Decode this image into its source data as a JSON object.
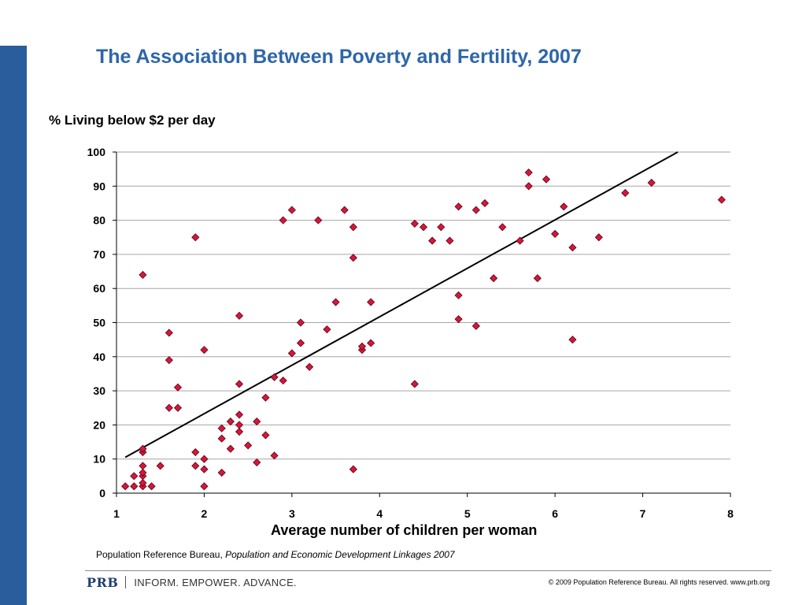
{
  "slide": {
    "title": "The Association Between Poverty and Fertility, 2007",
    "source_prefix": "Population Reference Bureau, ",
    "source_italic": "Population and Economic Development Linkages 2007",
    "brand_logo": "PRB",
    "brand_tagline": "INFORM. EMPOWER. ADVANCE.",
    "copyright": "© 2009 Population Reference Bureau. All rights reserved. www.prb.org",
    "accent_color": "#2a5d9c",
    "title_color": "#2e66a8"
  },
  "chart_data": {
    "type": "scatter",
    "title": "The Association Between Poverty and Fertility, 2007",
    "xlabel": "Average number of children per woman",
    "ylabel": "% Living below $2 per day",
    "xlim": [
      1,
      8
    ],
    "ylim": [
      0,
      100
    ],
    "x_ticks": [
      "1",
      "2",
      "3",
      "4",
      "5",
      "6",
      "7",
      "8"
    ],
    "y_ticks": [
      "0",
      "10",
      "20",
      "30",
      "40",
      "50",
      "60",
      "70",
      "80",
      "90",
      "100"
    ],
    "grid": "horizontal",
    "marker": "diamond",
    "marker_color": "#d6163c",
    "trendline": {
      "x": [
        1.1,
        7.4
      ],
      "y": [
        10.5,
        100
      ]
    },
    "points": [
      [
        1.1,
        2
      ],
      [
        1.2,
        2
      ],
      [
        1.2,
        5
      ],
      [
        1.3,
        2
      ],
      [
        1.3,
        3
      ],
      [
        1.3,
        5
      ],
      [
        1.3,
        6
      ],
      [
        1.3,
        8
      ],
      [
        1.3,
        12
      ],
      [
        1.3,
        13
      ],
      [
        1.3,
        64
      ],
      [
        1.4,
        2
      ],
      [
        1.5,
        8
      ],
      [
        1.6,
        25
      ],
      [
        1.6,
        39
      ],
      [
        1.6,
        47
      ],
      [
        1.7,
        25
      ],
      [
        1.7,
        31
      ],
      [
        1.9,
        8
      ],
      [
        1.9,
        12
      ],
      [
        1.9,
        75
      ],
      [
        2.0,
        2
      ],
      [
        2.0,
        7
      ],
      [
        2.0,
        10
      ],
      [
        2.0,
        42
      ],
      [
        2.2,
        6
      ],
      [
        2.2,
        16
      ],
      [
        2.2,
        19
      ],
      [
        2.3,
        13
      ],
      [
        2.3,
        21
      ],
      [
        2.4,
        18
      ],
      [
        2.4,
        20
      ],
      [
        2.4,
        23
      ],
      [
        2.4,
        32
      ],
      [
        2.4,
        52
      ],
      [
        2.5,
        14
      ],
      [
        2.6,
        9
      ],
      [
        2.6,
        21
      ],
      [
        2.7,
        17
      ],
      [
        2.7,
        28
      ],
      [
        2.8,
        11
      ],
      [
        2.8,
        34
      ],
      [
        2.9,
        33
      ],
      [
        2.9,
        80
      ],
      [
        3.0,
        41
      ],
      [
        3.0,
        83
      ],
      [
        3.1,
        44
      ],
      [
        3.1,
        50
      ],
      [
        3.2,
        37
      ],
      [
        3.3,
        80
      ],
      [
        3.4,
        48
      ],
      [
        3.5,
        56
      ],
      [
        3.6,
        83
      ],
      [
        3.7,
        7
      ],
      [
        3.7,
        69
      ],
      [
        3.7,
        78
      ],
      [
        3.8,
        42
      ],
      [
        3.8,
        43
      ],
      [
        3.9,
        44
      ],
      [
        3.9,
        56
      ],
      [
        4.4,
        32
      ],
      [
        4.4,
        79
      ],
      [
        4.5,
        78
      ],
      [
        4.6,
        74
      ],
      [
        4.7,
        78
      ],
      [
        4.8,
        74
      ],
      [
        4.9,
        51
      ],
      [
        4.9,
        58
      ],
      [
        4.9,
        84
      ],
      [
        5.1,
        49
      ],
      [
        5.1,
        83
      ],
      [
        5.2,
        85
      ],
      [
        5.3,
        63
      ],
      [
        5.4,
        78
      ],
      [
        5.6,
        74
      ],
      [
        5.7,
        90
      ],
      [
        5.7,
        94
      ],
      [
        5.8,
        63
      ],
      [
        5.9,
        92
      ],
      [
        6.0,
        76
      ],
      [
        6.1,
        84
      ],
      [
        6.2,
        45
      ],
      [
        6.2,
        72
      ],
      [
        6.5,
        75
      ],
      [
        6.8,
        88
      ],
      [
        7.1,
        91
      ],
      [
        7.9,
        86
      ]
    ]
  }
}
